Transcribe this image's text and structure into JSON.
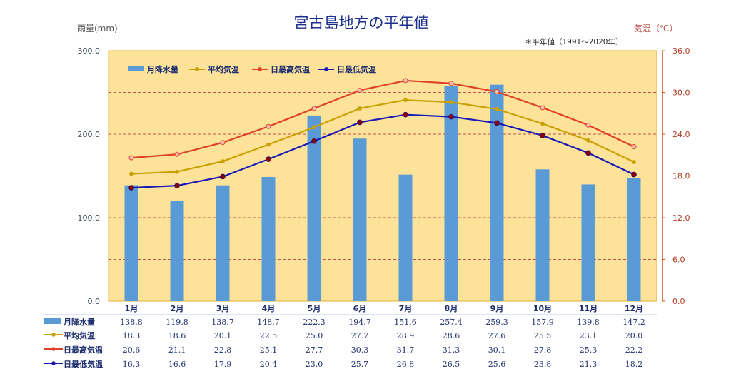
{
  "chart_data": {
    "type": "bar",
    "title": "宮古島地方の平年値",
    "note": "＊平年値（1991～2020年）",
    "y_left_label": "雨量(mm)",
    "y_right_label": "気温（℃）",
    "y_left_lim": [
      0,
      300
    ],
    "y_left_ticks": [
      "0.0",
      "100.0",
      "200.0",
      "300.0"
    ],
    "y_right_lim": [
      0,
      36
    ],
    "y_right_ticks": [
      "0.0",
      "6.0",
      "12.0",
      "18.0",
      "24.0",
      "30.0",
      "36.0"
    ],
    "grid": "dashed at right-axis ticks",
    "legend_position": "top-left",
    "categories": [
      "1月",
      "2月",
      "3月",
      "4月",
      "5月",
      "6月",
      "7月",
      "8月",
      "9月",
      "10月",
      "11月",
      "12月"
    ],
    "series": [
      {
        "name": "月降水量",
        "type": "bar",
        "axis": "left",
        "color": "#5b9bd5",
        "values": [
          138.8,
          119.8,
          138.7,
          148.7,
          222.3,
          194.7,
          151.6,
          257.4,
          259.3,
          157.9,
          139.8,
          147.2
        ],
        "labels": [
          "138.8",
          "119.8",
          "138.7",
          "148.7",
          "222.3",
          "194.7",
          "151.6",
          "257.4",
          "259.3",
          "157.9",
          "139.8",
          "147.2"
        ]
      },
      {
        "name": "平均気温",
        "type": "line",
        "axis": "right",
        "color": "#c9a000",
        "values": [
          18.3,
          18.6,
          20.1,
          22.5,
          25.0,
          27.7,
          28.9,
          28.6,
          27.6,
          25.5,
          23.1,
          20.0
        ],
        "labels": [
          "18.3",
          "18.6",
          "20.1",
          "22.5",
          "25.0",
          "27.7",
          "28.9",
          "28.6",
          "27.6",
          "25.5",
          "23.1",
          "20.0"
        ]
      },
      {
        "name": "日最高気温",
        "type": "line",
        "axis": "right",
        "color": "#e0402a",
        "values": [
          20.6,
          21.1,
          22.8,
          25.1,
          27.7,
          30.3,
          31.7,
          31.3,
          30.1,
          27.8,
          25.3,
          22.2
        ],
        "labels": [
          "20.6",
          "21.1",
          "22.8",
          "25.1",
          "27.7",
          "30.3",
          "31.7",
          "31.3",
          "30.1",
          "27.8",
          "25.3",
          "22.2"
        ]
      },
      {
        "name": "日最低気温",
        "type": "line",
        "axis": "right",
        "color": "#1a1ab8",
        "values": [
          16.3,
          16.6,
          17.9,
          20.4,
          23.0,
          25.7,
          26.8,
          26.5,
          25.6,
          23.8,
          21.3,
          18.2
        ],
        "labels": [
          "16.3",
          "16.6",
          "17.9",
          "20.4",
          "23.0",
          "25.7",
          "26.8",
          "26.5",
          "25.6",
          "23.8",
          "21.3",
          "18.2"
        ]
      }
    ]
  },
  "colors": {
    "plot_background": "#fde39a",
    "grid": "#c0504d",
    "bar": "#5b9bd5",
    "title": "#1c2f8f"
  }
}
